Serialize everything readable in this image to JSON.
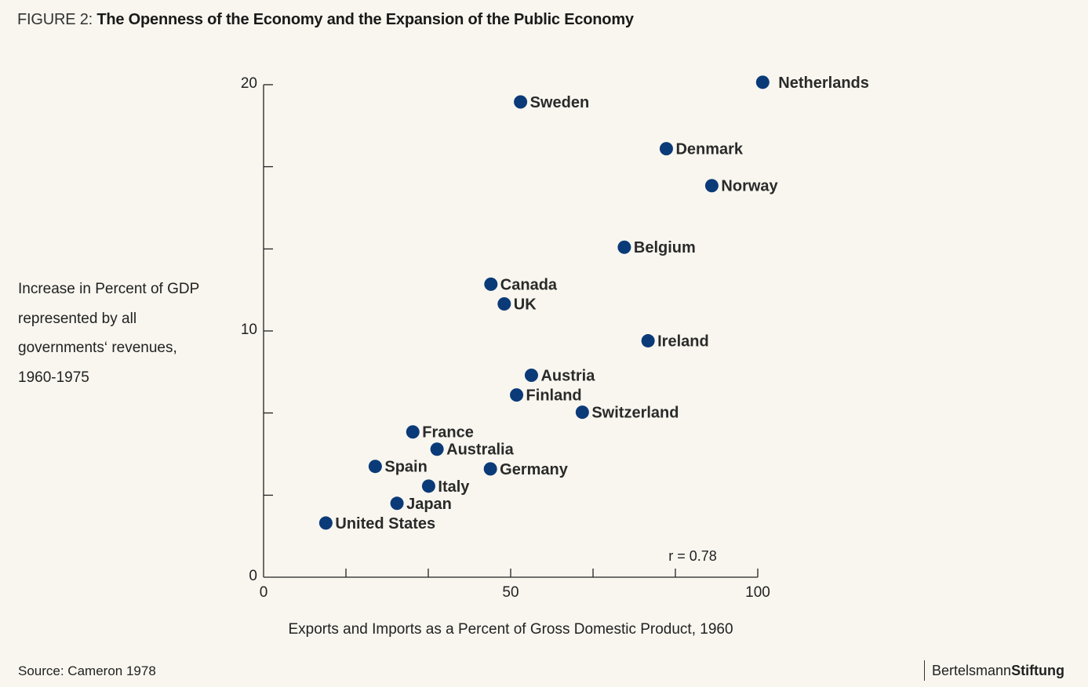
{
  "header": {
    "prefix": "FIGURE 2:",
    "title": "The Openness of the Economy and the Expansion of the Public Economy"
  },
  "chart_data": {
    "type": "scatter",
    "xlabel": "Exports and Imports as a Percent of Gross Domestic Product, 1960",
    "ylabel_lines": [
      "Increase in Percent of GDP",
      "represented by all",
      "governments‘ revenues,",
      "1960-1975"
    ],
    "xlim": [
      0,
      100
    ],
    "ylim": [
      0,
      20
    ],
    "x_ticks": [
      0,
      16.67,
      33.33,
      50,
      66.67,
      83.33,
      100
    ],
    "x_tick_labels": [
      {
        "value": 0,
        "label": "0"
      },
      {
        "value": 50,
        "label": "50"
      },
      {
        "value": 100,
        "label": "100"
      }
    ],
    "y_ticks": [
      0,
      3.33,
      6.67,
      10,
      13.33,
      16.67,
      20
    ],
    "y_tick_labels": [
      {
        "value": 0,
        "label": "0"
      },
      {
        "value": 10,
        "label": "10"
      },
      {
        "value": 20,
        "label": "20"
      }
    ],
    "annotation": "r = 0.78",
    "point_color": "#0b3a78",
    "points": [
      {
        "label": "Netherlands",
        "x": 101,
        "y": 20.1
      },
      {
        "label": "Sweden",
        "x": 52,
        "y": 19.3
      },
      {
        "label": "Denmark",
        "x": 81.5,
        "y": 17.4
      },
      {
        "label": "Norway",
        "x": 90.7,
        "y": 15.9
      },
      {
        "label": "Belgium",
        "x": 73,
        "y": 13.4
      },
      {
        "label": "Canada",
        "x": 46,
        "y": 11.9
      },
      {
        "label": "UK",
        "x": 48.7,
        "y": 11.1
      },
      {
        "label": "Ireland",
        "x": 77.8,
        "y": 9.6
      },
      {
        "label": "Austria",
        "x": 54.2,
        "y": 8.2
      },
      {
        "label": "Finland",
        "x": 51.2,
        "y": 7.4
      },
      {
        "label": "Switzerland",
        "x": 64.5,
        "y": 6.7
      },
      {
        "label": "France",
        "x": 30.2,
        "y": 5.9
      },
      {
        "label": "Australia",
        "x": 35.1,
        "y": 5.2
      },
      {
        "label": "Spain",
        "x": 22.6,
        "y": 4.5
      },
      {
        "label": "Germany",
        "x": 45.9,
        "y": 4.4
      },
      {
        "label": "Italy",
        "x": 33.4,
        "y": 3.7
      },
      {
        "label": "Japan",
        "x": 27,
        "y": 3.0
      },
      {
        "label": "United States",
        "x": 12.6,
        "y": 2.2
      }
    ]
  },
  "footer": {
    "source": "Source: Cameron 1978",
    "brand_part1": "Bertelsmann",
    "brand_part2": "Stiftung"
  }
}
